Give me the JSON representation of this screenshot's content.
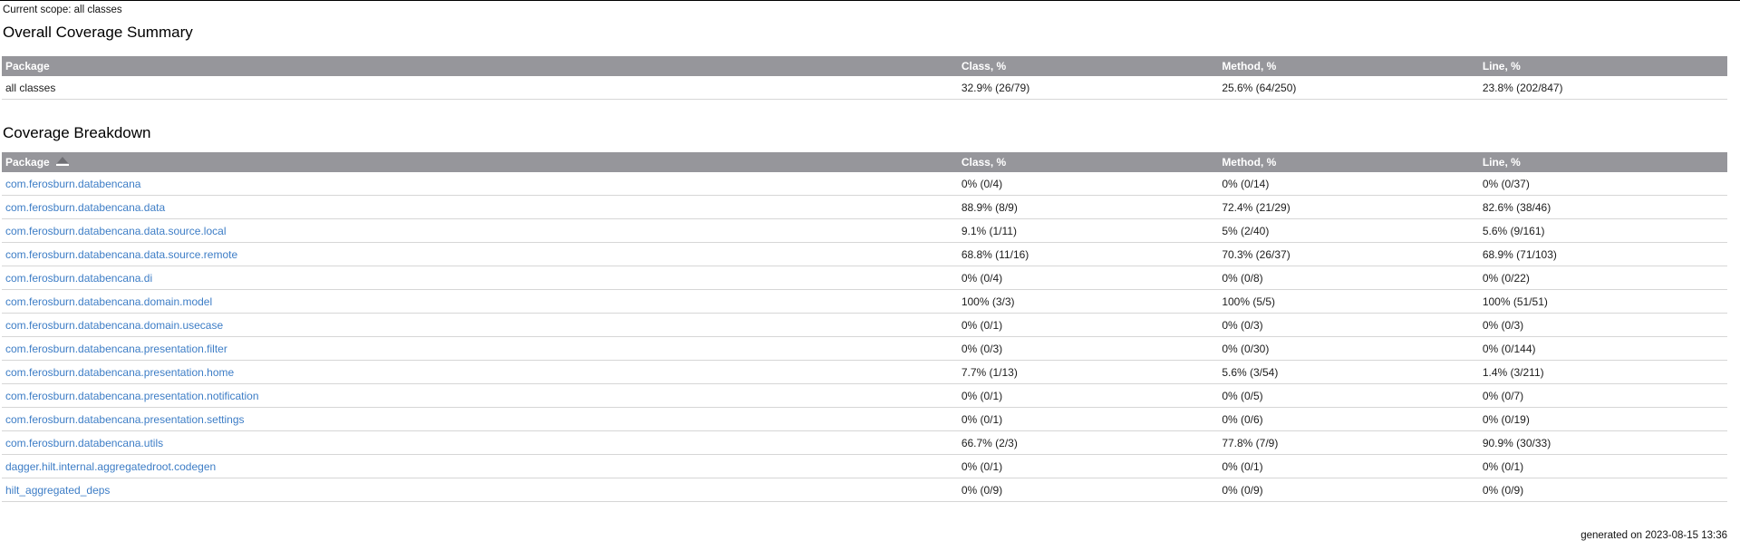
{
  "page": {
    "scope_label": "Current scope: all classes",
    "summary_title": "Overall Coverage Summary",
    "breakdown_title": "Coverage Breakdown",
    "generated_label": "generated on 2023-08-15 13:36"
  },
  "columns": [
    "Package",
    "Class, %",
    "Method, %",
    "Line, %"
  ],
  "colors": {
    "header_bg": "#96969b",
    "header_text": "#ffffff",
    "link": "#3d7dc6",
    "row_border": "#d6d6d6",
    "top_rule": "#000000"
  },
  "icons": {
    "sort_icon": "triangle-up-sort-ascending"
  },
  "summary": {
    "rows": [
      {
        "package": "all classes",
        "class_pct": "32.9% (26/79)",
        "method_pct": "25.6% (64/250)",
        "line_pct": "23.8% (202/847)"
      }
    ]
  },
  "breakdown": {
    "sort_column": "Package",
    "sort_direction": "ascending",
    "rows": [
      {
        "package": "com.ferosburn.databencana",
        "class_pct": "0% (0/4)",
        "method_pct": "0% (0/14)",
        "line_pct": "0% (0/37)"
      },
      {
        "package": "com.ferosburn.databencana.data",
        "class_pct": "88.9% (8/9)",
        "method_pct": "72.4% (21/29)",
        "line_pct": "82.6% (38/46)"
      },
      {
        "package": "com.ferosburn.databencana.data.source.local",
        "class_pct": "9.1% (1/11)",
        "method_pct": "5% (2/40)",
        "line_pct": "5.6% (9/161)"
      },
      {
        "package": "com.ferosburn.databencana.data.source.remote",
        "class_pct": "68.8% (11/16)",
        "method_pct": "70.3% (26/37)",
        "line_pct": "68.9% (71/103)"
      },
      {
        "package": "com.ferosburn.databencana.di",
        "class_pct": "0% (0/4)",
        "method_pct": "0% (0/8)",
        "line_pct": "0% (0/22)"
      },
      {
        "package": "com.ferosburn.databencana.domain.model",
        "class_pct": "100% (3/3)",
        "method_pct": "100% (5/5)",
        "line_pct": "100% (51/51)"
      },
      {
        "package": "com.ferosburn.databencana.domain.usecase",
        "class_pct": "0% (0/1)",
        "method_pct": "0% (0/3)",
        "line_pct": "0% (0/3)"
      },
      {
        "package": "com.ferosburn.databencana.presentation.filter",
        "class_pct": "0% (0/3)",
        "method_pct": "0% (0/30)",
        "line_pct": "0% (0/144)"
      },
      {
        "package": "com.ferosburn.databencana.presentation.home",
        "class_pct": "7.7% (1/13)",
        "method_pct": "5.6% (3/54)",
        "line_pct": "1.4% (3/211)"
      },
      {
        "package": "com.ferosburn.databencana.presentation.notification",
        "class_pct": "0% (0/1)",
        "method_pct": "0% (0/5)",
        "line_pct": "0% (0/7)"
      },
      {
        "package": "com.ferosburn.databencana.presentation.settings",
        "class_pct": "0% (0/1)",
        "method_pct": "0% (0/6)",
        "line_pct": "0% (0/19)"
      },
      {
        "package": "com.ferosburn.databencana.utils",
        "class_pct": "66.7% (2/3)",
        "method_pct": "77.8% (7/9)",
        "line_pct": "90.9% (30/33)"
      },
      {
        "package": "dagger.hilt.internal.aggregatedroot.codegen",
        "class_pct": "0% (0/1)",
        "method_pct": "0% (0/1)",
        "line_pct": "0% (0/1)"
      },
      {
        "package": "hilt_aggregated_deps",
        "class_pct": "0% (0/9)",
        "method_pct": "0% (0/9)",
        "line_pct": "0% (0/9)"
      }
    ]
  }
}
